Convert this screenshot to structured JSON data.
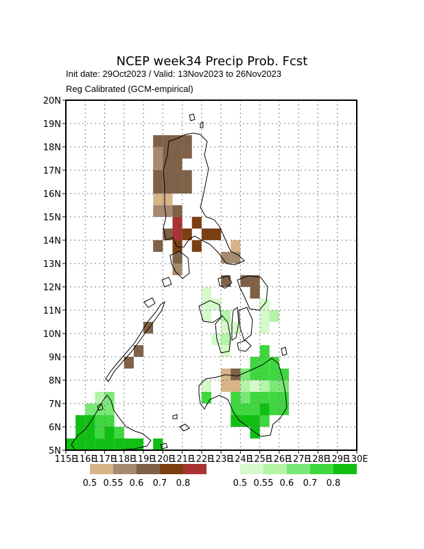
{
  "header": {
    "title": "NCEP week34 Precip Prob. Fcst",
    "subtitle": "Init date: 29Oct2023 / Valid: 13Nov2023 to 26Nov2023",
    "method": "Reg Calibrated (GCM-empirical)"
  },
  "chart_data": {
    "type": "heatmap",
    "x_range": [
      115,
      130
    ],
    "y_range": [
      5,
      20
    ],
    "grid_step_deg": 1,
    "cell_size_deg": 0.5,
    "grid": "dotted",
    "x_ticks": [
      "115E",
      "116E",
      "117E",
      "118E",
      "119E",
      "120E",
      "121E",
      "122E",
      "123E",
      "124E",
      "125E",
      "126E",
      "127E",
      "128E",
      "129E",
      "130E"
    ],
    "y_ticks": [
      "5N",
      "6N",
      "7N",
      "8N",
      "9N",
      "10N",
      "11N",
      "12N",
      "13N",
      "14N",
      "15N",
      "16N",
      "17N",
      "18N",
      "19N",
      "20N"
    ],
    "dry_legend": {
      "labels": [
        "0.5",
        "0.55",
        "0.6",
        "0.7",
        "0.8"
      ],
      "colors": [
        "#d8b487",
        "#a58a70",
        "#7e6147",
        "#7b3f12",
        "#a83333"
      ]
    },
    "wet_legend": {
      "labels": [
        "0.5",
        "0.55",
        "0.6",
        "0.7",
        "0.8"
      ],
      "colors": [
        "#d6f9cc",
        "#b3f4a6",
        "#7ae877",
        "#3fd73f",
        "#0fc012"
      ]
    },
    "dry_cells": [
      [
        119.5,
        18,
        3
      ],
      [
        120,
        18,
        3
      ],
      [
        120.5,
        18,
        3
      ],
      [
        121,
        18,
        3
      ],
      [
        119.5,
        17.5,
        2
      ],
      [
        120,
        17.5,
        3
      ],
      [
        120.5,
        17.5,
        3
      ],
      [
        121,
        17.5,
        3
      ],
      [
        119.5,
        17,
        2
      ],
      [
        120,
        17,
        3
      ],
      [
        120.5,
        17,
        3
      ],
      [
        119.5,
        16.5,
        3
      ],
      [
        120,
        16.5,
        3
      ],
      [
        120.5,
        16.5,
        3
      ],
      [
        121,
        16.5,
        3
      ],
      [
        119.5,
        16,
        3
      ],
      [
        120,
        16,
        3
      ],
      [
        120.5,
        16,
        3
      ],
      [
        121,
        16,
        3
      ],
      [
        119.5,
        15.5,
        1
      ],
      [
        120,
        15.5,
        1
      ],
      [
        119.5,
        15,
        2
      ],
      [
        120,
        15,
        2
      ],
      [
        120.5,
        15,
        3
      ],
      [
        120.5,
        14.5,
        5
      ],
      [
        121.5,
        14.5,
        4
      ],
      [
        120,
        14,
        3
      ],
      [
        120.5,
        14,
        5
      ],
      [
        121,
        14,
        4
      ],
      [
        122,
        14,
        4
      ],
      [
        122.5,
        14,
        4
      ],
      [
        119.5,
        13.5,
        3
      ],
      [
        120.5,
        13.5,
        4
      ],
      [
        121.5,
        13.5,
        4
      ],
      [
        123.5,
        13.5,
        1
      ],
      [
        120.5,
        13,
        3
      ],
      [
        123,
        13,
        2
      ],
      [
        123.5,
        13,
        2
      ],
      [
        120.5,
        12.5,
        2
      ],
      [
        123,
        12,
        3
      ],
      [
        124,
        12,
        3
      ],
      [
        124.5,
        12,
        3
      ],
      [
        124.5,
        11.5,
        3
      ],
      [
        122.5,
        9.5,
        1
      ],
      [
        123,
        8,
        1
      ],
      [
        123.5,
        8,
        1
      ],
      [
        123.5,
        8,
        3
      ],
      [
        123,
        7.5,
        1
      ],
      [
        123.5,
        7.5,
        1
      ],
      [
        118.5,
        9,
        3
      ],
      [
        118,
        8.5,
        3
      ],
      [
        119,
        10,
        3
      ]
    ],
    "wet_cells": [
      [
        122,
        11.5,
        1
      ],
      [
        122,
        11,
        1
      ],
      [
        122.5,
        11,
        1
      ],
      [
        122,
        10.5,
        1
      ],
      [
        123,
        10.5,
        2
      ],
      [
        123,
        10,
        1
      ],
      [
        123.5,
        10,
        1
      ],
      [
        122.5,
        9.5,
        1
      ],
      [
        123,
        9.5,
        2
      ],
      [
        125,
        11,
        1
      ],
      [
        125,
        10.5,
        1
      ],
      [
        125.5,
        10.5,
        2
      ],
      [
        125,
        10,
        1
      ],
      [
        123,
        9,
        1
      ],
      [
        125,
        9,
        4
      ],
      [
        124.5,
        8.5,
        4
      ],
      [
        125,
        8.5,
        4
      ],
      [
        125.5,
        8.5,
        4
      ],
      [
        124,
        8,
        3
      ],
      [
        124.5,
        8,
        4
      ],
      [
        125,
        8,
        4
      ],
      [
        125.5,
        8,
        4
      ],
      [
        126,
        8,
        4
      ],
      [
        124,
        7.5,
        2
      ],
      [
        124.5,
        7.5,
        1
      ],
      [
        125,
        7.5,
        2
      ],
      [
        125.5,
        7.5,
        3
      ],
      [
        126,
        7.5,
        3
      ],
      [
        122,
        7.5,
        1
      ],
      [
        122,
        7,
        4
      ],
      [
        123.5,
        7,
        4
      ],
      [
        124,
        7,
        3
      ],
      [
        124.5,
        7,
        4
      ],
      [
        125,
        7,
        4
      ],
      [
        125.5,
        7,
        4
      ],
      [
        126,
        7,
        4
      ],
      [
        123.5,
        6.5,
        4
      ],
      [
        124,
        6.5,
        4
      ],
      [
        124.5,
        6.5,
        4
      ],
      [
        125,
        6.5,
        5
      ],
      [
        125.5,
        6.5,
        4
      ],
      [
        126,
        6.5,
        4
      ],
      [
        123.5,
        6,
        5
      ],
      [
        124,
        6,
        5
      ],
      [
        124.5,
        6,
        5
      ],
      [
        125,
        6,
        4
      ],
      [
        124.5,
        5.5,
        5
      ],
      [
        116.5,
        7,
        2
      ],
      [
        117,
        7,
        3
      ],
      [
        116,
        6.5,
        3
      ],
      [
        116.5,
        6.5,
        3
      ],
      [
        117,
        6.5,
        3
      ],
      [
        115.5,
        6,
        5
      ],
      [
        116,
        6,
        5
      ],
      [
        116.5,
        6,
        4
      ],
      [
        117,
        6,
        4
      ],
      [
        115.5,
        5.5,
        5
      ],
      [
        116,
        5.5,
        5
      ],
      [
        116.5,
        5.5,
        4
      ],
      [
        117,
        5.5,
        5
      ],
      [
        117.5,
        5.5,
        4
      ],
      [
        115,
        5,
        5
      ],
      [
        115.5,
        5,
        5
      ],
      [
        116,
        5,
        5
      ],
      [
        116.5,
        5,
        5
      ],
      [
        117,
        5,
        5
      ],
      [
        117.5,
        5,
        5
      ],
      [
        118,
        5,
        5
      ],
      [
        118.5,
        5,
        5
      ],
      [
        119.5,
        5,
        5
      ]
    ]
  }
}
